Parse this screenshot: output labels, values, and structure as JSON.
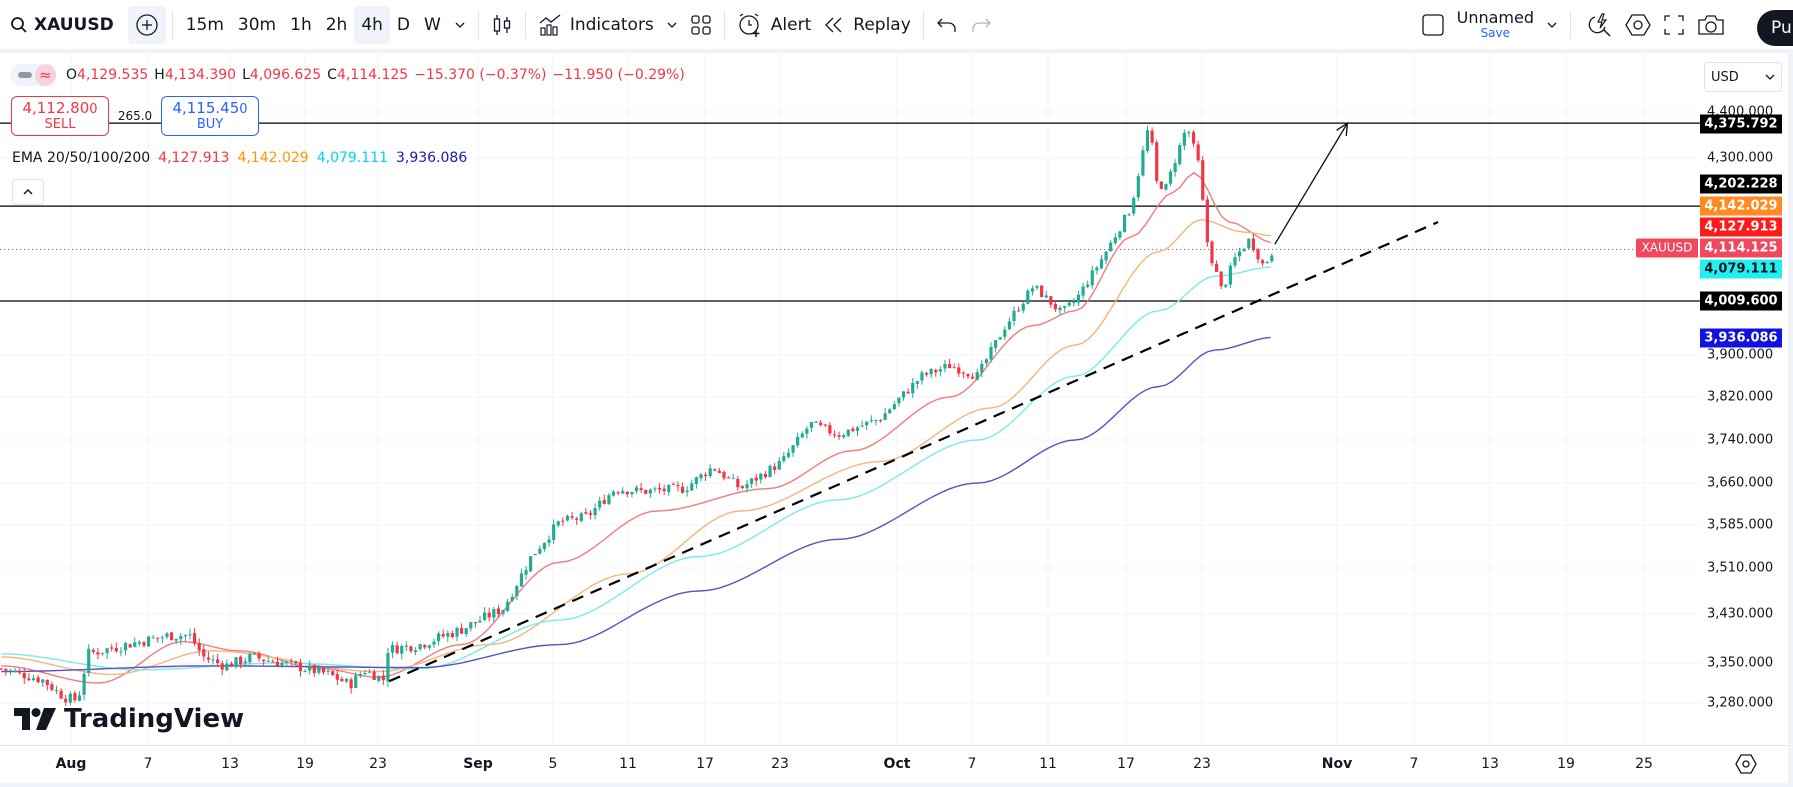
{
  "toolbar": {
    "symbol": "XAUUSD",
    "timeframes": [
      "15m",
      "30m",
      "1h",
      "2h",
      "4h",
      "D",
      "W"
    ],
    "active_timeframe": "4h",
    "indicators_label": "Indicators",
    "alert_label": "Alert",
    "replay_label": "Replay",
    "layout_name": "Unnamed",
    "save_label": "Save",
    "publish_label": "Pu"
  },
  "legend": {
    "open_key": "O",
    "open": "4,129.535",
    "high_key": "H",
    "high": "4,134.390",
    "low_key": "L",
    "low": "4,096.625",
    "close_key": "C",
    "close": "4,114.125",
    "change": "−15.370 (−0.37%)",
    "change2": "−11.950 (−0.29%)"
  },
  "trade": {
    "sell_price": "4,112.80",
    "sell_price_sup": "0",
    "sell_label": "SELL",
    "spread": "265.0",
    "buy_price": "4,115.45",
    "buy_price_sup": "0",
    "buy_label": "BUY"
  },
  "ema": {
    "label": "EMA 20/50/100/200",
    "values": [
      "4,127.913",
      "4,142.029",
      "4,079.111",
      "3,936.086"
    ],
    "colors": [
      "#f23645",
      "#ff9800",
      "#00e5ff",
      "#1a1ab8"
    ]
  },
  "logo": {
    "text": "TradingView"
  },
  "price_axis": {
    "currency": "USD",
    "ticks": [
      "4,400.000",
      "4,300.000",
      "3,900.000",
      "3,820.000",
      "3,740.000",
      "3,660.000",
      "3,585.000",
      "3,510.000",
      "3,430.000",
      "3,350.000",
      "3,280.000"
    ],
    "badges": [
      {
        "value": "4,375.792",
        "color": "#000000",
        "text_color": "#ffffff"
      },
      {
        "value": "4,202.228",
        "color": "#000000",
        "text_color": "#ffffff"
      },
      {
        "value": "4,142.029",
        "color": "#ff8a1f",
        "text_color": "#ffffff"
      },
      {
        "value": "4,127.913",
        "color": "#ff1a1a",
        "text_color": "#ffffff"
      },
      {
        "value": "4,114.125",
        "color": "#f0495e",
        "text_color": "#ffffff"
      },
      {
        "value": "4,079.111",
        "color": "#22f0f0",
        "text_color": "#131722"
      },
      {
        "value": "4,009.600",
        "color": "#000000",
        "text_color": "#ffffff"
      },
      {
        "value": "3,936.086",
        "color": "#1212e0",
        "text_color": "#ffffff"
      }
    ],
    "symbol_badge": "XAUUSD"
  },
  "time_axis": {
    "labels": [
      "Aug",
      "7",
      "13",
      "19",
      "23",
      "Sep",
      "5",
      "11",
      "17",
      "23",
      "Oct",
      "7",
      "11",
      "17",
      "23",
      "Nov",
      "7",
      "13",
      "19",
      "25"
    ],
    "month_labels": [
      "Aug",
      "Sep",
      "Oct",
      "Nov"
    ]
  },
  "chart_data": {
    "type": "candlestick",
    "symbol": "XAUUSD",
    "interval": "4h",
    "yscale_ticks": [
      4400,
      4300,
      3900,
      3820,
      3740,
      3660,
      3585,
      3510,
      3430,
      3350,
      3280
    ],
    "price_path": [
      {
        "day": -5,
        "price": 3340
      },
      {
        "day": -2,
        "price": 3320
      },
      {
        "day": -0.5,
        "price": 3290
      },
      {
        "day": 0.5,
        "price": 3285
      },
      {
        "day": 1.2,
        "price": 3365
      },
      {
        "day": 4,
        "price": 3380
      },
      {
        "day": 7,
        "price": 3395
      },
      {
        "day": 8.5,
        "price": 3395
      },
      {
        "day": 9.5,
        "price": 3360
      },
      {
        "day": 11,
        "price": 3345
      },
      {
        "day": 13,
        "price": 3360
      },
      {
        "day": 16,
        "price": 3345
      },
      {
        "day": 18.5,
        "price": 3330
      },
      {
        "day": 20,
        "price": 3312
      },
      {
        "day": 21,
        "price": 3338
      },
      {
        "day": 22.5,
        "price": 3320
      },
      {
        "day": 22.7,
        "price": 3372
      },
      {
        "day": 25,
        "price": 3380
      },
      {
        "day": 28,
        "price": 3405
      },
      {
        "day": 31,
        "price": 3440
      },
      {
        "day": 33,
        "price": 3530
      },
      {
        "day": 35,
        "price": 3590
      },
      {
        "day": 37,
        "price": 3600
      },
      {
        "day": 39,
        "price": 3650
      },
      {
        "day": 41,
        "price": 3645
      },
      {
        "day": 44,
        "price": 3650
      },
      {
        "day": 46,
        "price": 3690
      },
      {
        "day": 48,
        "price": 3650
      },
      {
        "day": 51,
        "price": 3700
      },
      {
        "day": 53,
        "price": 3770
      },
      {
        "day": 55,
        "price": 3750
      },
      {
        "day": 58,
        "price": 3780
      },
      {
        "day": 61,
        "price": 3860
      },
      {
        "day": 63,
        "price": 3880
      },
      {
        "day": 65,
        "price": 3860
      },
      {
        "day": 67,
        "price": 3960
      },
      {
        "day": 69,
        "price": 4040
      },
      {
        "day": 71,
        "price": 3985
      },
      {
        "day": 72,
        "price": 4010
      },
      {
        "day": 74,
        "price": 4100
      },
      {
        "day": 76,
        "price": 4200
      },
      {
        "day": 77.3,
        "price": 4375
      },
      {
        "day": 77.8,
        "price": 4250
      },
      {
        "day": 78.5,
        "price": 4240
      },
      {
        "day": 80,
        "price": 4370
      },
      {
        "day": 80.8,
        "price": 4290
      },
      {
        "day": 81.5,
        "price": 4120
      },
      {
        "day": 82.5,
        "price": 4030
      },
      {
        "day": 83.5,
        "price": 4100
      },
      {
        "day": 84.5,
        "price": 4135
      },
      {
        "day": 85.5,
        "price": 4080
      },
      {
        "day": 86.2,
        "price": 4114
      }
    ],
    "ema_series": [
      {
        "name": "EMA 20",
        "color": "#f27b7b",
        "points": [
          {
            "day": -5,
            "price": 3345
          },
          {
            "day": 2,
            "price": 3315
          },
          {
            "day": 8,
            "price": 3385
          },
          {
            "day": 12,
            "price": 3370
          },
          {
            "day": 18,
            "price": 3340
          },
          {
            "day": 22,
            "price": 3325
          },
          {
            "day": 28,
            "price": 3380
          },
          {
            "day": 35,
            "price": 3520
          },
          {
            "day": 42,
            "price": 3610
          },
          {
            "day": 50,
            "price": 3650
          },
          {
            "day": 56,
            "price": 3720
          },
          {
            "day": 63,
            "price": 3820
          },
          {
            "day": 69,
            "price": 3960
          },
          {
            "day": 72,
            "price": 3990
          },
          {
            "day": 76,
            "price": 4140
          },
          {
            "day": 79,
            "price": 4230
          },
          {
            "day": 80.5,
            "price": 4270
          },
          {
            "day": 83,
            "price": 4170
          },
          {
            "day": 86.2,
            "price": 4128
          }
        ]
      },
      {
        "name": "EMA 50",
        "color": "#f5b57a",
        "points": [
          {
            "day": -5,
            "price": 3360
          },
          {
            "day": 3,
            "price": 3330
          },
          {
            "day": 10,
            "price": 3370
          },
          {
            "day": 22,
            "price": 3335
          },
          {
            "day": 30,
            "price": 3380
          },
          {
            "day": 40,
            "price": 3500
          },
          {
            "day": 48,
            "price": 3610
          },
          {
            "day": 58,
            "price": 3700
          },
          {
            "day": 66,
            "price": 3800
          },
          {
            "day": 72,
            "price": 3920
          },
          {
            "day": 78,
            "price": 4110
          },
          {
            "day": 81,
            "price": 4175
          },
          {
            "day": 84,
            "price": 4150
          },
          {
            "day": 86.2,
            "price": 4142
          }
        ]
      },
      {
        "name": "EMA 100",
        "color": "#7fe8ec",
        "points": [
          {
            "day": -5,
            "price": 3365
          },
          {
            "day": 5,
            "price": 3338
          },
          {
            "day": 15,
            "price": 3350
          },
          {
            "day": 25,
            "price": 3340
          },
          {
            "day": 35,
            "price": 3420
          },
          {
            "day": 45,
            "price": 3530
          },
          {
            "day": 55,
            "price": 3630
          },
          {
            "day": 65,
            "price": 3740
          },
          {
            "day": 72,
            "price": 3860
          },
          {
            "day": 78,
            "price": 3990
          },
          {
            "day": 82,
            "price": 4060
          },
          {
            "day": 86.2,
            "price": 4079
          }
        ]
      },
      {
        "name": "EMA 200",
        "color": "#5b4fc4",
        "points": [
          {
            "day": -5,
            "price": 3335
          },
          {
            "day": 10,
            "price": 3345
          },
          {
            "day": 25,
            "price": 3342
          },
          {
            "day": 35,
            "price": 3380
          },
          {
            "day": 45,
            "price": 3470
          },
          {
            "day": 55,
            "price": 3560
          },
          {
            "day": 65,
            "price": 3660
          },
          {
            "day": 72,
            "price": 3740
          },
          {
            "day": 78,
            "price": 3840
          },
          {
            "day": 82,
            "price": 3910
          },
          {
            "day": 86.2,
            "price": 3936
          }
        ]
      }
    ],
    "horizontal_lines": [
      4375.792,
      4202.228,
      4009.6
    ],
    "current_price_line": 4114.125,
    "trendline": {
      "from": {
        "day": 22.8,
        "price": 3318
      },
      "to": {
        "day": 98,
        "price": 4170
      },
      "style": "dashed"
    },
    "projection_arrow": {
      "from": {
        "day": 86.3,
        "price": 4125
      },
      "to": {
        "day": 91.5,
        "price": 4375.792
      }
    }
  }
}
